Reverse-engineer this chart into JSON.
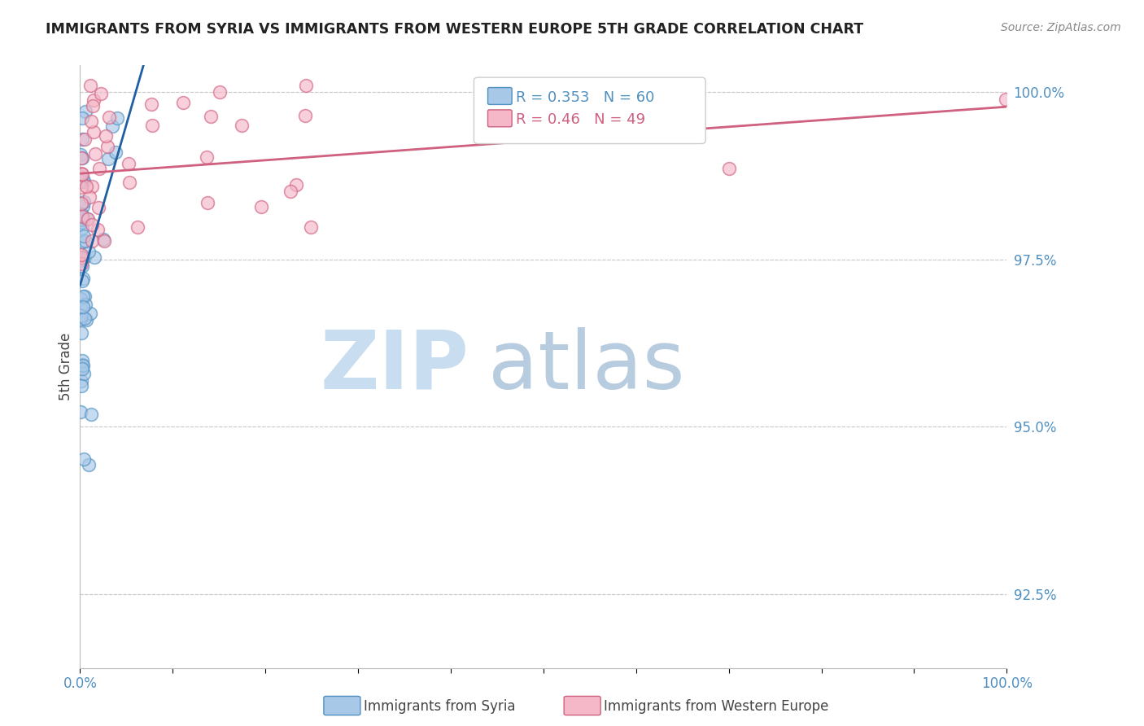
{
  "title": "IMMIGRANTS FROM SYRIA VS IMMIGRANTS FROM WESTERN EUROPE 5TH GRADE CORRELATION CHART",
  "source": "Source: ZipAtlas.com",
  "ylabel": "5th Grade",
  "syria_color": "#a8c8e8",
  "western_europe_color": "#f4b8c8",
  "syria_edge_color": "#5090c0",
  "western_europe_edge_color": "#d06080",
  "line_blue_color": "#2060a0",
  "line_pink_color": "#d06080",
  "grid_color": "#cccccc",
  "tick_color": "#5090c0",
  "R_syria": 0.353,
  "N_syria": 60,
  "R_western": 0.46,
  "N_western": 49,
  "watermark_zip_color": "#c8ddf0",
  "watermark_atlas_color": "#b8cce0",
  "xlim": [
    0.0,
    1.0
  ],
  "ylim": [
    0.914,
    1.004
  ],
  "yticks": [
    0.925,
    0.95,
    0.975,
    1.0
  ],
  "ytick_labels": [
    "92.5%",
    "95.0%",
    "97.5%",
    "100.0%"
  ]
}
